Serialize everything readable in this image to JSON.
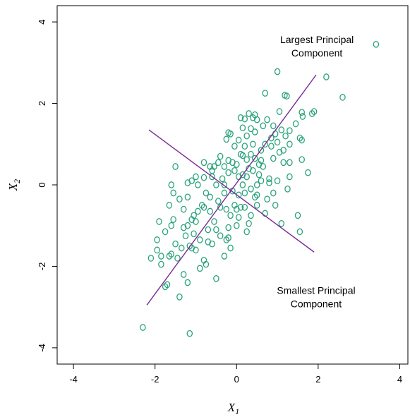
{
  "chart_data": {
    "type": "scatter",
    "title": "",
    "xlabel": "X",
    "xlabel_sub": "1",
    "ylabel": "X",
    "ylabel_sub": "2",
    "xlim": [
      -4.4,
      4.2
    ],
    "ylim": [
      -4.4,
      4.4
    ],
    "xticks": [
      -4,
      -2,
      0,
      2,
      4
    ],
    "yticks": [
      -4,
      -2,
      0,
      2,
      4
    ],
    "grid": false,
    "colors": {
      "points": "#2aa37a",
      "lines": "#7a2a96"
    },
    "annotations": [
      {
        "lines": [
          "Largest Principal",
          "Component"
        ],
        "x": 1.97,
        "y": 3.48
      },
      {
        "lines": [
          "Smallest Principal",
          "Component"
        ],
        "x": 1.95,
        "y": -2.68
      }
    ],
    "principal_components": [
      {
        "name": "Largest Principal Component",
        "x": [
          -2.2,
          1.95
        ],
        "y": [
          -2.95,
          2.7
        ]
      },
      {
        "name": "Smallest Principal Component",
        "x": [
          -2.15,
          1.9
        ],
        "y": [
          1.35,
          -1.65
        ]
      }
    ],
    "points": [
      [
        3.42,
        3.45
      ],
      [
        2.2,
        2.65
      ],
      [
        2.6,
        2.15
      ],
      [
        1.0,
        2.78
      ],
      [
        1.18,
        2.2
      ],
      [
        1.23,
        2.18
      ],
      [
        0.7,
        2.25
      ],
      [
        1.05,
        1.8
      ],
      [
        1.9,
        1.8
      ],
      [
        1.85,
        1.75
      ],
      [
        1.6,
        1.78
      ],
      [
        1.62,
        1.68
      ],
      [
        0.3,
        1.75
      ],
      [
        0.45,
        1.72
      ],
      [
        0.4,
        1.65
      ],
      [
        0.5,
        1.6
      ],
      [
        0.2,
        1.62
      ],
      [
        0.1,
        1.65
      ],
      [
        0.65,
        1.45
      ],
      [
        0.75,
        1.6
      ],
      [
        0.9,
        1.45
      ],
      [
        0.95,
        1.25
      ],
      [
        0.85,
        1.15
      ],
      [
        1.1,
        1.35
      ],
      [
        1.3,
        1.33
      ],
      [
        1.2,
        1.2
      ],
      [
        1.45,
        1.5
      ],
      [
        1.55,
        1.15
      ],
      [
        1.3,
        1.0
      ],
      [
        1.05,
        0.8
      ],
      [
        1.15,
        0.85
      ],
      [
        1.6,
        0.62
      ],
      [
        0.9,
        0.65
      ],
      [
        0.45,
        1.3
      ],
      [
        0.35,
        1.38
      ],
      [
        0.25,
        1.2
      ],
      [
        -0.2,
        1.28
      ],
      [
        -0.15,
        1.25
      ],
      [
        0.05,
        1.1
      ],
      [
        -0.25,
        1.12
      ],
      [
        0.2,
        0.95
      ],
      [
        -0.05,
        0.95
      ],
      [
        0.1,
        0.75
      ],
      [
        0.15,
        0.72
      ],
      [
        -0.45,
        0.55
      ],
      [
        -0.55,
        0.45
      ],
      [
        -0.65,
        0.45
      ],
      [
        -0.8,
        0.18
      ],
      [
        -1.0,
        0.2
      ],
      [
        -1.1,
        0.1
      ],
      [
        -1.6,
        0.0
      ],
      [
        -1.55,
        -0.2
      ],
      [
        -1.4,
        -0.35
      ],
      [
        -1.65,
        -0.5
      ],
      [
        -1.9,
        -0.9
      ],
      [
        -1.75,
        -1.15
      ],
      [
        -1.95,
        -1.35
      ],
      [
        -1.5,
        -1.45
      ],
      [
        -1.3,
        -1.05
      ],
      [
        -1.2,
        -1.0
      ],
      [
        -1.05,
        -0.75
      ],
      [
        -0.95,
        -0.65
      ],
      [
        -1.0,
        -0.9
      ],
      [
        -1.1,
        -0.85
      ],
      [
        -1.05,
        -1.2
      ],
      [
        -1.1,
        -1.55
      ],
      [
        -1.0,
        -1.6
      ],
      [
        -1.15,
        -1.5
      ],
      [
        -1.35,
        -1.55
      ],
      [
        -1.6,
        -1.7
      ],
      [
        -1.95,
        -1.6
      ],
      [
        -1.85,
        -1.95
      ],
      [
        -2.1,
        -1.8
      ],
      [
        -1.65,
        -1.75
      ],
      [
        -0.8,
        -1.85
      ],
      [
        -0.75,
        -1.95
      ],
      [
        -0.9,
        -2.05
      ],
      [
        -1.3,
        -2.2
      ],
      [
        -1.2,
        -2.4
      ],
      [
        -1.75,
        -2.5
      ],
      [
        -1.7,
        -2.45
      ],
      [
        -1.4,
        -2.75
      ],
      [
        -0.5,
        -2.3
      ],
      [
        -2.3,
        -3.5
      ],
      [
        -1.15,
        -3.65
      ],
      [
        -0.6,
        -1.45
      ],
      [
        -0.4,
        -1.25
      ],
      [
        -0.2,
        -1.05
      ],
      [
        0.0,
        -0.6
      ],
      [
        0.1,
        -0.55
      ],
      [
        -0.05,
        -0.5
      ],
      [
        0.2,
        -0.55
      ],
      [
        0.35,
        -0.75
      ],
      [
        0.5,
        -0.5
      ],
      [
        0.7,
        -0.7
      ],
      [
        0.05,
        -0.8
      ],
      [
        -0.15,
        -0.75
      ],
      [
        0.3,
        -0.95
      ],
      [
        0.0,
        -1.0
      ],
      [
        -0.25,
        -1.35
      ],
      [
        -0.15,
        -1.55
      ],
      [
        -0.3,
        -1.75
      ],
      [
        -0.55,
        -0.9
      ],
      [
        -0.7,
        -1.1
      ],
      [
        -0.65,
        -0.65
      ],
      [
        -0.85,
        -0.5
      ],
      [
        -0.45,
        -0.4
      ],
      [
        -0.3,
        -0.2
      ],
      [
        -0.5,
        0.0
      ],
      [
        -0.35,
        0.15
      ],
      [
        -0.2,
        0.3
      ],
      [
        0.0,
        0.5
      ],
      [
        0.3,
        0.4
      ],
      [
        0.15,
        0.0
      ],
      [
        0.35,
        -0.1
      ],
      [
        0.5,
        0.0
      ],
      [
        0.55,
        0.25
      ],
      [
        0.4,
        0.35
      ],
      [
        0.65,
        0.45
      ],
      [
        0.6,
        0.1
      ],
      [
        0.8,
        0.15
      ],
      [
        0.9,
        -0.2
      ],
      [
        1.0,
        0.1
      ],
      [
        0.75,
        -0.35
      ],
      [
        0.95,
        -0.5
      ],
      [
        1.1,
        -0.95
      ],
      [
        1.25,
        -0.1
      ],
      [
        1.3,
        0.2
      ],
      [
        1.5,
        -0.75
      ],
      [
        1.55,
        -1.15
      ],
      [
        1.75,
        0.3
      ],
      [
        1.6,
        1.1
      ],
      [
        1.3,
        0.55
      ],
      [
        0.55,
        0.5
      ],
      [
        0.45,
        0.65
      ],
      [
        0.35,
        0.75
      ],
      [
        0.25,
        0.62
      ],
      [
        -0.05,
        0.35
      ],
      [
        -0.3,
        0.0
      ],
      [
        -0.1,
        -0.15
      ],
      [
        0.2,
        -0.2
      ],
      [
        0.45,
        -0.3
      ],
      [
        0.25,
        0.2
      ],
      [
        -0.6,
        0.2
      ],
      [
        -0.75,
        -0.2
      ],
      [
        -0.8,
        -0.55
      ],
      [
        -0.4,
        -0.55
      ],
      [
        -0.25,
        -0.6
      ],
      [
        -0.4,
        0.7
      ],
      [
        -0.2,
        0.6
      ],
      [
        0.05,
        0.2
      ],
      [
        0.15,
        0.25
      ],
      [
        -0.6,
        0.35
      ],
      [
        -0.95,
        0.0
      ],
      [
        -1.2,
        -0.3
      ],
      [
        -1.3,
        -0.6
      ],
      [
        -0.9,
        -1.35
      ],
      [
        -0.7,
        -1.4
      ],
      [
        0.7,
        1.0
      ],
      [
        0.6,
        0.85
      ],
      [
        0.85,
        0.95
      ],
      [
        0.15,
        1.4
      ],
      [
        -0.1,
        0.55
      ],
      [
        -1.85,
        -1.75
      ],
      [
        -1.55,
        -0.85
      ],
      [
        -1.25,
        -1.25
      ],
      [
        -1.6,
        -1.0
      ],
      [
        -1.45,
        -1.8
      ],
      [
        -1.5,
        0.45
      ],
      [
        -1.2,
        0.05
      ],
      [
        -0.8,
        0.55
      ],
      [
        -0.3,
        0.45
      ],
      [
        0.4,
        1.0
      ],
      [
        1.0,
        1.05
      ],
      [
        1.15,
        0.55
      ],
      [
        0.8,
        0.05
      ],
      [
        0.5,
        -0.25
      ],
      [
        0.25,
        -1.15
      ],
      [
        -0.5,
        -1.1
      ],
      [
        -0.2,
        -1.3
      ],
      [
        -0.65,
        -0.3
      ],
      [
        0.05,
        -0.25
      ],
      [
        0.6,
        0.6
      ]
    ]
  }
}
